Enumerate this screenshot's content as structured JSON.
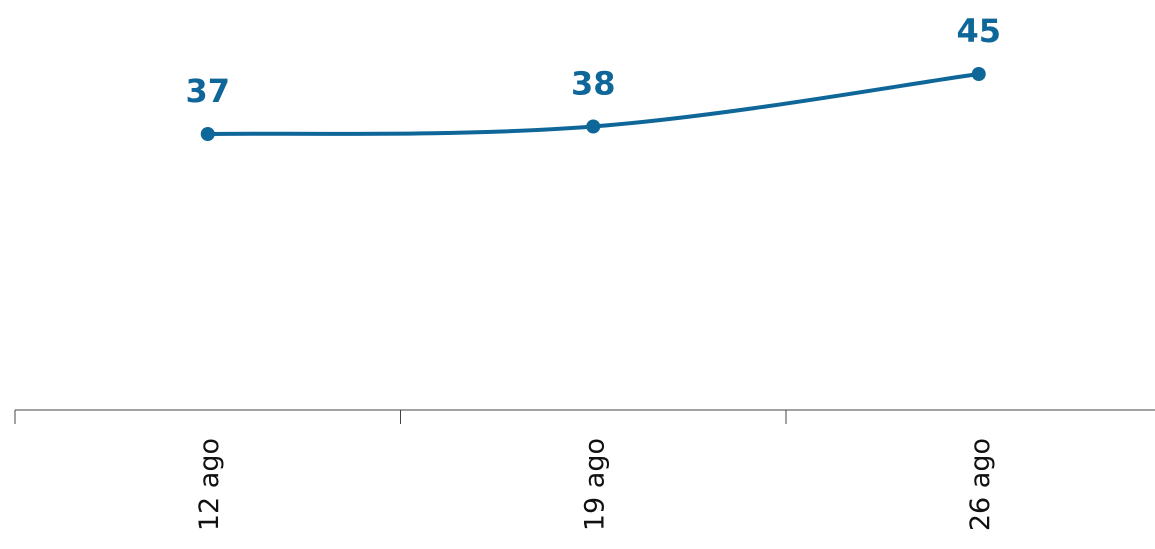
{
  "chart_data": {
    "type": "line",
    "categories": [
      "12 ago",
      "19 ago",
      "26 ago"
    ],
    "series": [
      {
        "values": [
          37,
          38,
          45
        ]
      }
    ],
    "data_labels": [
      "37",
      "38",
      "45"
    ],
    "title": "",
    "xlabel": "",
    "ylabel": "",
    "ylim": [
      0,
      50
    ],
    "grid": false,
    "legend": "none",
    "colors": {
      "line": "#0e6699",
      "axis": "#444444",
      "tick_text": "#111111"
    }
  }
}
